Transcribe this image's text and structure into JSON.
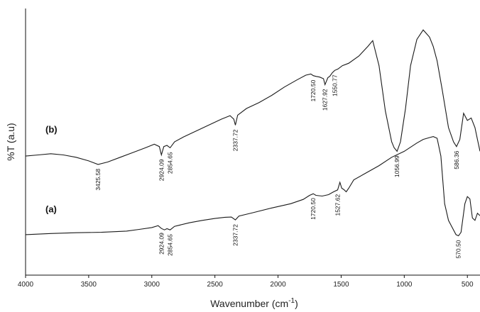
{
  "chart_data": {
    "type": "line",
    "xlabel": "Wavenumber (cm",
    "xlabel_sup": "-1",
    "xlabel_tail": ")",
    "ylabel": "%T (a.u)",
    "xlim": [
      4000,
      400
    ],
    "xticks": [
      4000,
      3500,
      3000,
      2500,
      2000,
      1500,
      1000,
      500
    ],
    "x_reversed": true,
    "grid": false,
    "series": [
      {
        "name": "(b)",
        "x": [
          4000,
          3900,
          3800,
          3700,
          3600,
          3500,
          3425.58,
          3350,
          3250,
          3150,
          3050,
          2980,
          2940,
          2924.09,
          2905,
          2880,
          2854.65,
          2820,
          2750,
          2650,
          2550,
          2450,
          2380,
          2350,
          2337.72,
          2320,
          2250,
          2150,
          2050,
          1950,
          1850,
          1780,
          1740,
          1720.5,
          1700,
          1670,
          1640,
          1627.92,
          1605,
          1590,
          1570,
          1550.77,
          1525,
          1490,
          1440,
          1360,
          1290,
          1250,
          1200,
          1150,
          1100,
          1080,
          1056.99,
          1030,
          990,
          950,
          900,
          850,
          800,
          770,
          740,
          700,
          650,
          610,
          586.36,
          560,
          530,
          500,
          470,
          440,
          420,
          400
        ],
        "y": [
          0.5,
          0.505,
          0.51,
          0.505,
          0.495,
          0.48,
          0.465,
          0.475,
          0.495,
          0.515,
          0.535,
          0.55,
          0.54,
          0.505,
          0.54,
          0.545,
          0.535,
          0.56,
          0.58,
          0.605,
          0.63,
          0.655,
          0.67,
          0.655,
          0.63,
          0.672,
          0.7,
          0.725,
          0.755,
          0.79,
          0.82,
          0.84,
          0.845,
          0.838,
          0.835,
          0.832,
          0.825,
          0.8,
          0.83,
          0.835,
          0.85,
          0.86,
          0.866,
          0.88,
          0.89,
          0.92,
          0.96,
          0.985,
          0.88,
          0.69,
          0.56,
          0.535,
          0.52,
          0.56,
          0.7,
          0.88,
          0.99,
          1.03,
          1.0,
          0.96,
          0.9,
          0.78,
          0.62,
          0.56,
          0.54,
          0.57,
          0.68,
          0.65,
          0.66,
          0.62,
          0.57,
          0.52
        ]
      },
      {
        "name": "(a)",
        "x": [
          4000,
          3800,
          3600,
          3400,
          3200,
          3100,
          3000,
          2950,
          2924.09,
          2900,
          2880,
          2854.65,
          2820,
          2700,
          2600,
          2500,
          2420,
          2370,
          2337.72,
          2310,
          2200,
          2050,
          1900,
          1800,
          1750,
          1720.5,
          1700,
          1650,
          1600,
          1560,
          1527.62,
          1510,
          1495,
          1480,
          1460,
          1440,
          1400,
          1300,
          1200,
          1100,
          1000,
          900,
          850,
          800,
          770,
          740,
          710,
          680,
          650,
          620,
          590,
          570.5,
          550,
          520,
          500,
          480,
          460,
          440,
          420,
          400
        ],
        "y": [
          0.17,
          0.175,
          0.178,
          0.18,
          0.185,
          0.192,
          0.2,
          0.208,
          0.196,
          0.19,
          0.195,
          0.19,
          0.205,
          0.22,
          0.23,
          0.238,
          0.243,
          0.244,
          0.232,
          0.248,
          0.262,
          0.282,
          0.3,
          0.318,
          0.335,
          0.342,
          0.335,
          0.332,
          0.338,
          0.35,
          0.358,
          0.39,
          0.365,
          0.36,
          0.35,
          0.365,
          0.4,
          0.43,
          0.46,
          0.495,
          0.52,
          0.555,
          0.57,
          0.578,
          0.582,
          0.575,
          0.5,
          0.3,
          0.23,
          0.2,
          0.17,
          0.165,
          0.18,
          0.3,
          0.33,
          0.32,
          0.24,
          0.23,
          0.26,
          0.25
        ]
      }
    ],
    "curve_labels": [
      {
        "series": "(b)",
        "text": "(b)"
      },
      {
        "series": "(a)",
        "text": "(a)"
      }
    ],
    "annotations": [
      {
        "series": "(b)",
        "text": "3425.58"
      },
      {
        "series": "(b)",
        "text": "2924.09"
      },
      {
        "series": "(b)",
        "text": "2854.65"
      },
      {
        "series": "(b)",
        "text": "2337.72"
      },
      {
        "series": "(b)",
        "text": "1720.50"
      },
      {
        "series": "(b)",
        "text": "1627.92"
      },
      {
        "series": "(b)",
        "text": "1550.77"
      },
      {
        "series": "(b)",
        "text": "1056.99"
      },
      {
        "series": "(b)",
        "text": "586.36"
      },
      {
        "series": "(a)",
        "text": "2924.09"
      },
      {
        "series": "(a)",
        "text": "2854.65"
      },
      {
        "series": "(a)",
        "text": "2337.72"
      },
      {
        "series": "(a)",
        "text": "1720.50"
      },
      {
        "series": "(a)",
        "text": "1527.62"
      },
      {
        "series": "(a)",
        "text": "570.50"
      }
    ]
  }
}
